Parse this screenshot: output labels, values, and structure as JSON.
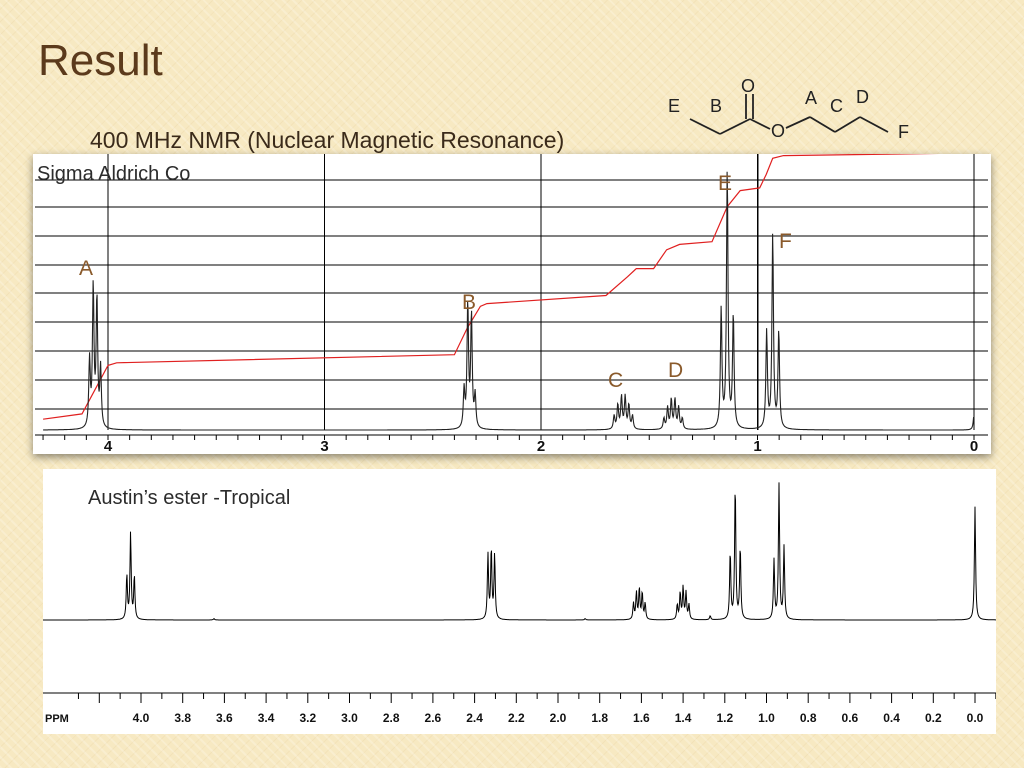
{
  "slide": {
    "title": "Result",
    "subtitle": "400 MHz NMR (Nuclear Magnetic Resonance)"
  },
  "molecule": {
    "atom_labels": [
      "E",
      "B",
      "O",
      "O",
      "A",
      "C",
      "D",
      "F"
    ]
  },
  "colors": {
    "background": "#f7e9c2",
    "title_text": "#5b3a1c",
    "peak_label": "#8a5a2b",
    "integral_curve": "#e02020",
    "spectrum": "#000000"
  },
  "chart_data": [
    {
      "type": "line",
      "source_label": "Sigma Aldrich Co",
      "x_reversed": true,
      "xlim": [
        4.3,
        0.0
      ],
      "x_ticks": [
        4,
        3,
        2,
        1,
        0
      ],
      "x_tick_labels": [
        "4",
        "3",
        "2",
        "1",
        "0"
      ],
      "grid": true,
      "peak_labels": [
        {
          "label": "A",
          "ppm": 4.06
        },
        {
          "label": "B",
          "ppm": 2.33
        },
        {
          "label": "C",
          "ppm": 1.62
        },
        {
          "label": "D",
          "ppm": 1.39
        },
        {
          "label": "E",
          "ppm": 1.14
        },
        {
          "label": "F",
          "ppm": 0.93
        }
      ],
      "peaks": [
        {
          "center": 4.06,
          "h": [
            0.22,
            0.48,
            0.52,
            0.25
          ],
          "spacing": 0.017
        },
        {
          "center": 2.33,
          "h": [
            0.12,
            0.42,
            0.46,
            0.14
          ],
          "spacing": 0.017
        },
        {
          "center": 1.62,
          "h": [
            0.05,
            0.09,
            0.12,
            0.12,
            0.09,
            0.05
          ],
          "spacing": 0.017
        },
        {
          "center": 1.39,
          "h": [
            0.04,
            0.08,
            0.11,
            0.11,
            0.08,
            0.04
          ],
          "spacing": 0.017
        },
        {
          "center": 1.14,
          "h": [
            0.42,
            0.96,
            0.44
          ],
          "spacing": 0.028
        },
        {
          "center": 0.93,
          "h": [
            0.36,
            0.72,
            0.36
          ],
          "spacing": 0.028
        },
        {
          "center": 0.0,
          "h": [
            0.06
          ],
          "spacing": 0.0
        }
      ],
      "integral": {
        "x": [
          4.3,
          4.12,
          4.06,
          4.0,
          3.96,
          2.4,
          2.34,
          2.28,
          2.25,
          1.7,
          1.6,
          1.56,
          1.48,
          1.42,
          1.36,
          1.21,
          1.14,
          1.08,
          0.99,
          0.96,
          0.93,
          0.88,
          0.0
        ],
        "y": [
          0.04,
          0.06,
          0.15,
          0.24,
          0.25,
          0.28,
          0.38,
          0.46,
          0.47,
          0.5,
          0.57,
          0.6,
          0.6,
          0.67,
          0.69,
          0.7,
          0.83,
          0.89,
          0.9,
          0.95,
          1.01,
          1.02,
          1.03
        ]
      }
    },
    {
      "type": "line",
      "title": "Austin’s ester -Tropical",
      "xlabel": "PPM",
      "x_reversed": true,
      "xlim": [
        4.3,
        -0.1
      ],
      "x_tick_labels": [
        "4.0",
        "3.8",
        "3.6",
        "3.4",
        "3.2",
        "3.0",
        "2.8",
        "2.6",
        "2.4",
        "2.2",
        "2.0",
        "1.8",
        "1.6",
        "1.4",
        "1.2",
        "1.0",
        "0.8",
        "0.6",
        "0.4",
        "0.2",
        "0.0"
      ],
      "x_ticks": [
        4.0,
        3.8,
        3.6,
        3.4,
        3.2,
        3.0,
        2.8,
        2.6,
        2.4,
        2.2,
        2.0,
        1.8,
        1.6,
        1.4,
        1.2,
        1.0,
        0.8,
        0.6,
        0.4,
        0.2,
        0.0
      ],
      "peaks": [
        {
          "center": 4.05,
          "h": [
            0.32,
            0.64,
            0.33
          ],
          "spacing": 0.018
        },
        {
          "center": 3.65,
          "h": [
            0.01
          ],
          "spacing": 0.0
        },
        {
          "center": 2.32,
          "h": [
            0.48,
            0.52,
            0.48
          ],
          "spacing": 0.016
        },
        {
          "center": 1.87,
          "h": [
            0.01
          ],
          "spacing": 0.0
        },
        {
          "center": 1.61,
          "h": [
            0.12,
            0.2,
            0.23,
            0.2,
            0.12
          ],
          "spacing": 0.014
        },
        {
          "center": 1.4,
          "h": [
            0.11,
            0.2,
            0.24,
            0.2,
            0.11
          ],
          "spacing": 0.014
        },
        {
          "center": 1.27,
          "h": [
            0.03
          ],
          "spacing": 0.0
        },
        {
          "center": 1.15,
          "h": [
            0.54,
            1.0,
            0.5
          ],
          "spacing": 0.024
        },
        {
          "center": 0.94,
          "h": [
            0.54,
            1.0,
            0.44
          ],
          "spacing": 0.024
        },
        {
          "center": 0.0,
          "h": [
            0.84
          ],
          "spacing": 0.0
        }
      ]
    }
  ]
}
